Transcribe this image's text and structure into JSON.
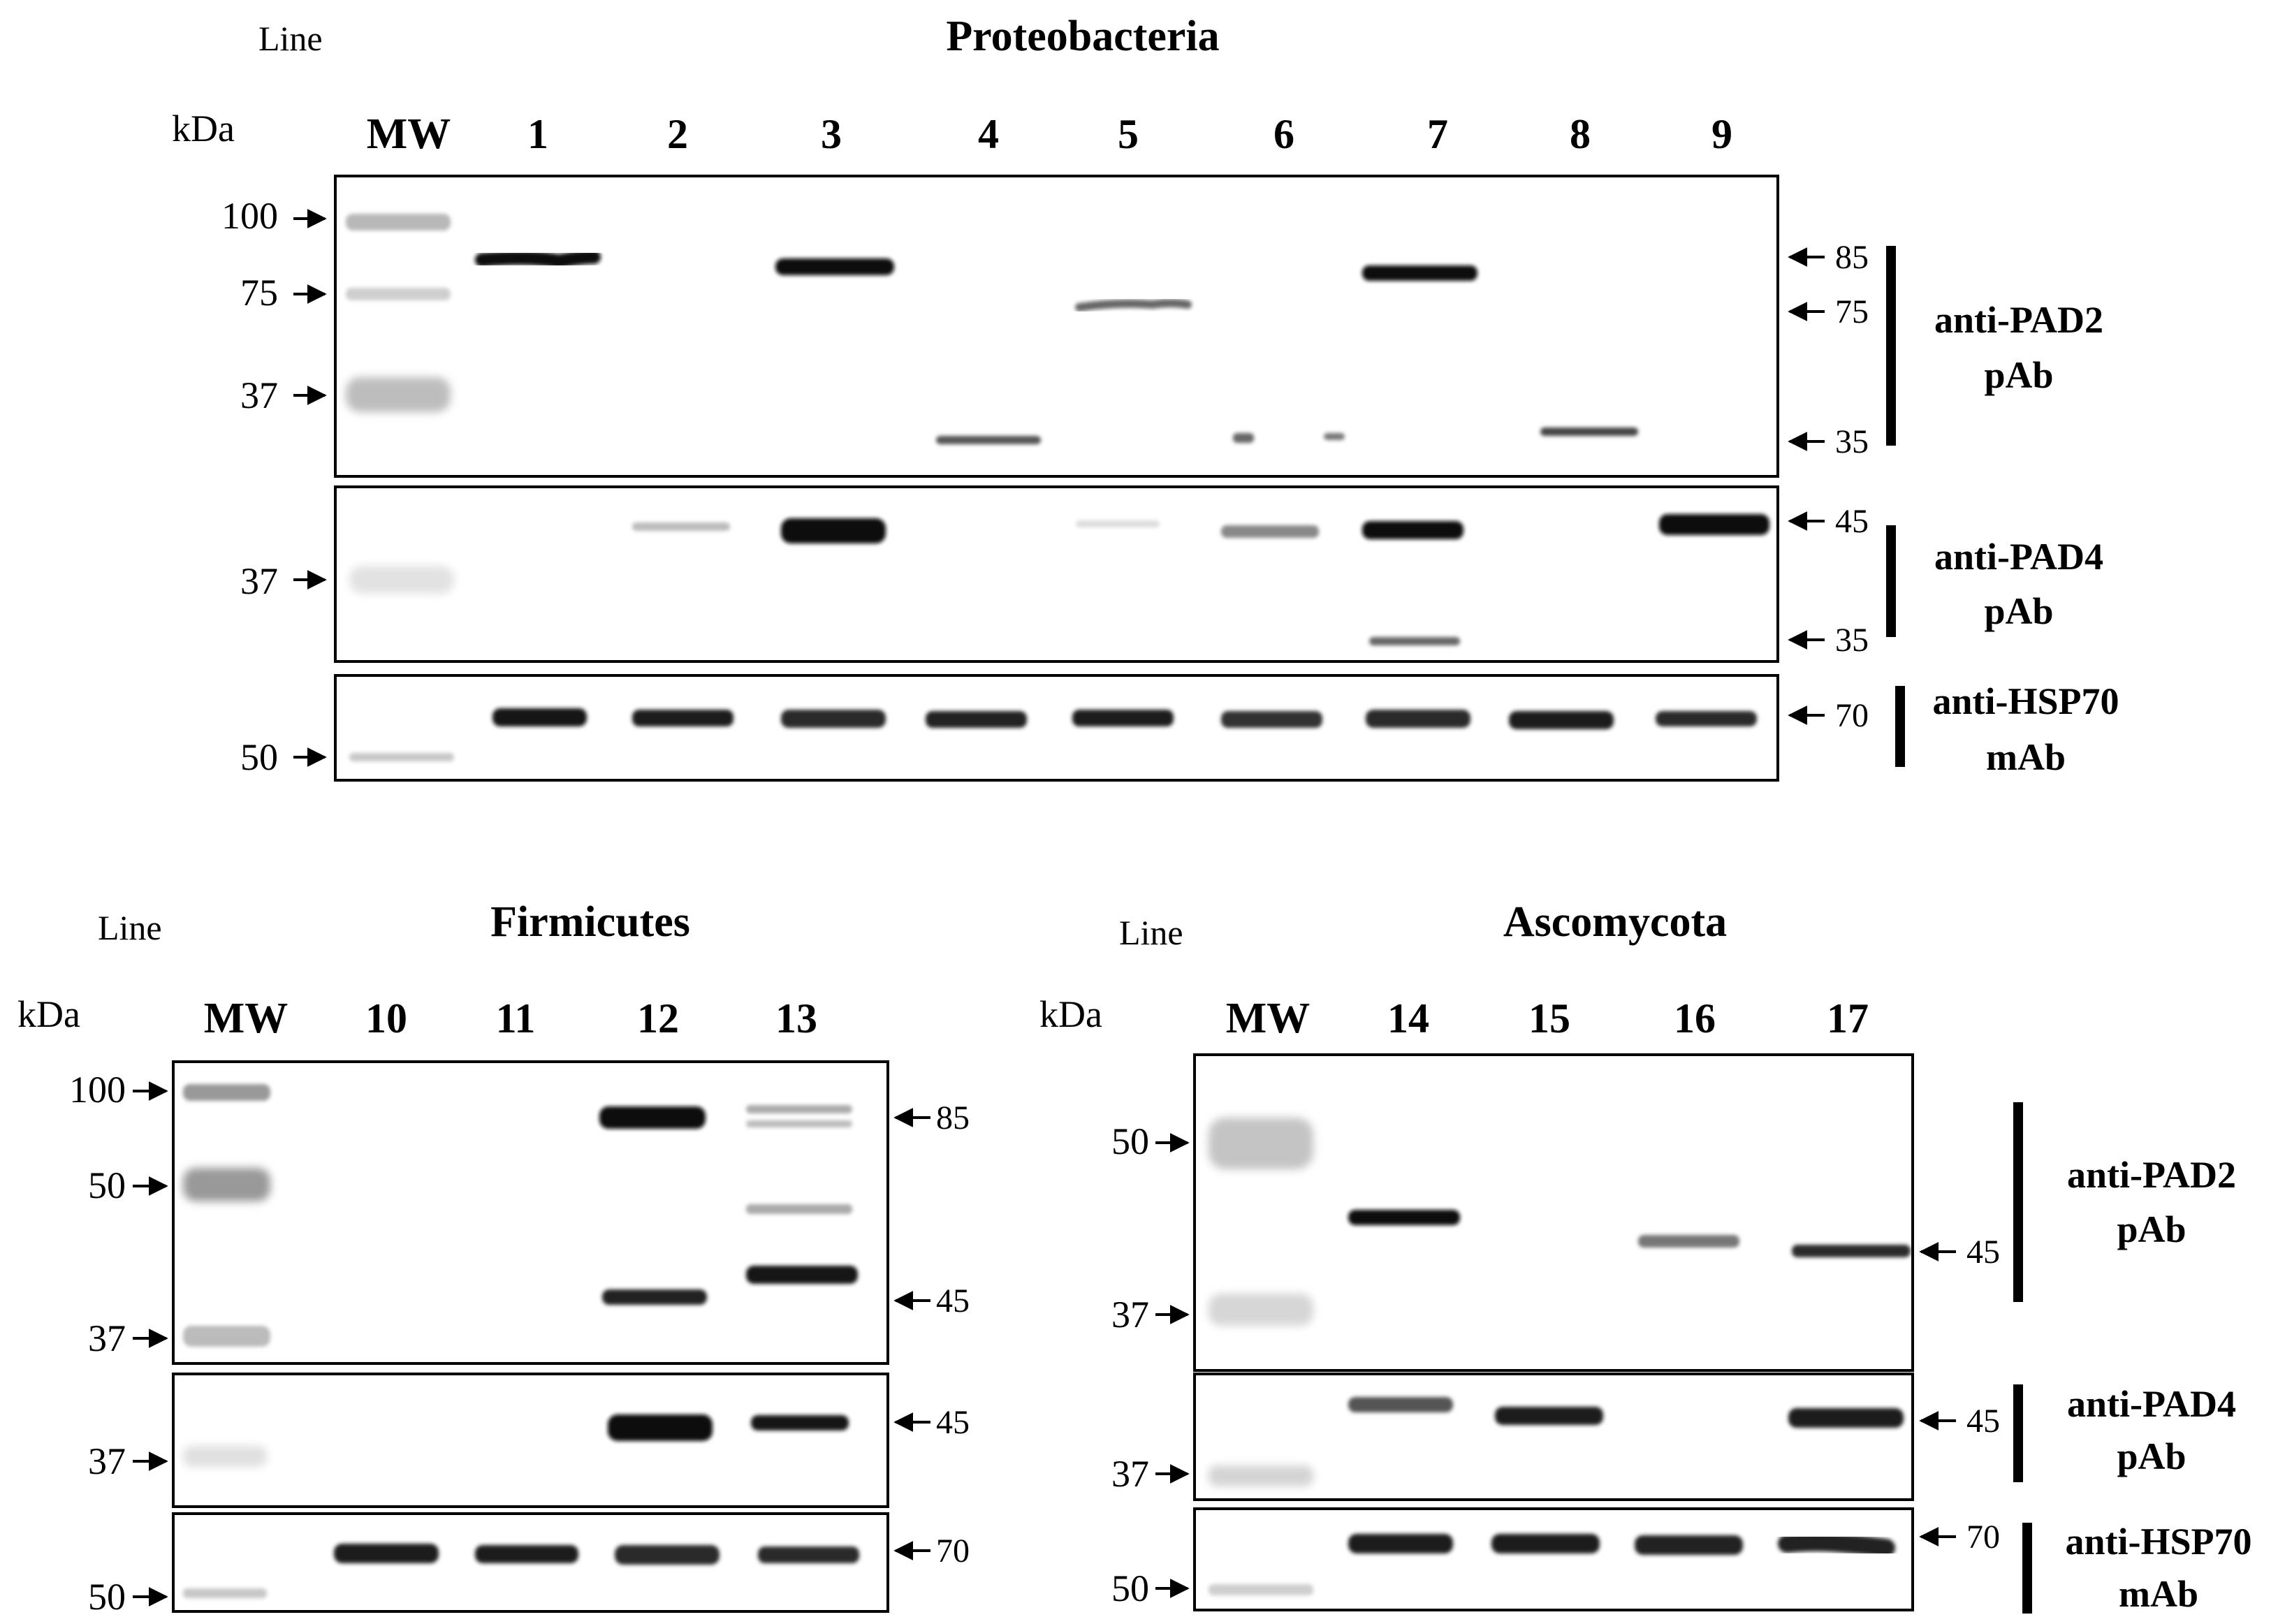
{
  "proteobacteria": {
    "line_label": "Line",
    "title": "Proteobacteria",
    "kda_label": "kDa",
    "mw_label": "MW",
    "lanes": [
      "1",
      "2",
      "3",
      "4",
      "5",
      "6",
      "7",
      "8",
      "9"
    ],
    "pad2": {
      "markers_left": [
        "100",
        "75",
        "37"
      ],
      "markers_right": [
        "85",
        "75",
        "35"
      ],
      "antibody_line1": "anti-PAD2",
      "antibody_line2": "pAb"
    },
    "pad4": {
      "markers_left": [
        "37"
      ],
      "markers_right": [
        "45",
        "35"
      ],
      "antibody_line1": "anti-PAD4",
      "antibody_line2": "pAb"
    },
    "hsp70": {
      "markers_left": [
        "50"
      ],
      "markers_right": [
        "70"
      ],
      "antibody_line1": "anti-HSP70",
      "antibody_line2": "mAb"
    }
  },
  "firmicutes": {
    "line_label": "Line",
    "title": "Firmicutes",
    "kda_label": "kDa",
    "mw_label": "MW",
    "lanes": [
      "10",
      "11",
      "12",
      "13"
    ],
    "pad2": {
      "markers_left": [
        "100",
        "50",
        "37"
      ],
      "markers_right": [
        "85",
        "45"
      ]
    },
    "pad4": {
      "markers_left": [
        "37"
      ],
      "markers_right": [
        "45"
      ]
    },
    "hsp70": {
      "markers_left": [
        "50"
      ],
      "markers_right": [
        "70"
      ]
    }
  },
  "ascomycota": {
    "line_label": "Line",
    "title": "Ascomycota",
    "kda_label": "kDa",
    "mw_label": "MW",
    "lanes": [
      "14",
      "15",
      "16",
      "17"
    ],
    "pad2": {
      "markers_left": [
        "50",
        "37"
      ],
      "markers_right": [
        "45"
      ],
      "antibody_line1": "anti-PAD2",
      "antibody_line2": "pAb"
    },
    "pad4": {
      "markers_left": [
        "37"
      ],
      "markers_right": [
        "45"
      ],
      "antibody_line1": "anti-PAD4",
      "antibody_line2": "pAb"
    },
    "hsp70": {
      "markers_left": [
        "50"
      ],
      "markers_right": [
        "70"
      ],
      "antibody_line1": "anti-HSP70",
      "antibody_line2": "mAb"
    }
  }
}
